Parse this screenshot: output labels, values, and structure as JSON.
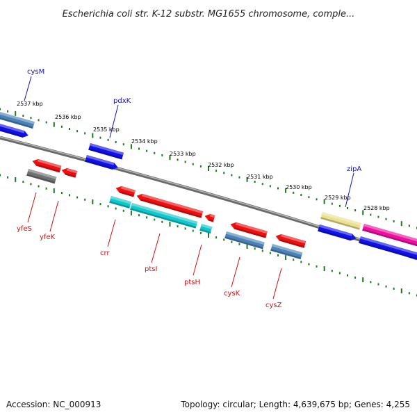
{
  "title": "Escherichia coli str. K-12 substr. MG1655 chromosome, comple...",
  "footer": {
    "accession": "Accession: NC_000913",
    "summary": "Topology: circular; Length: 4,639,675 bp; Genes: 4,255"
  },
  "colors": {
    "backbone": "#808080",
    "tick": "#1a7a1a",
    "label_forward": "#1010c0",
    "label_reverse": "#cc1010",
    "cds_forward": "#1010e8",
    "cds_reverse": "#ee1010",
    "gene_steel": "#4a82b8",
    "gene_cyan": "#10c8cc",
    "gene_gray": "#707070",
    "gene_khaki": "#ede08e",
    "gene_magenta": "#ee10a0"
  },
  "scale_labels": [
    "2537 kbp",
    "2536 kbp",
    "2535 kbp",
    "2534 kbp",
    "2533 kbp",
    "2532 kbp",
    "2531 kbp",
    "2530 kbp",
    "2529 kbp",
    "2528 kbp"
  ],
  "gene_labels_forward": [
    "cysM",
    "pdxK",
    "zipA"
  ],
  "gene_labels_reverse": [
    "yfeS",
    "yfeK",
    "crr",
    "ptsI",
    "ptsH",
    "cysK",
    "cysZ"
  ]
}
